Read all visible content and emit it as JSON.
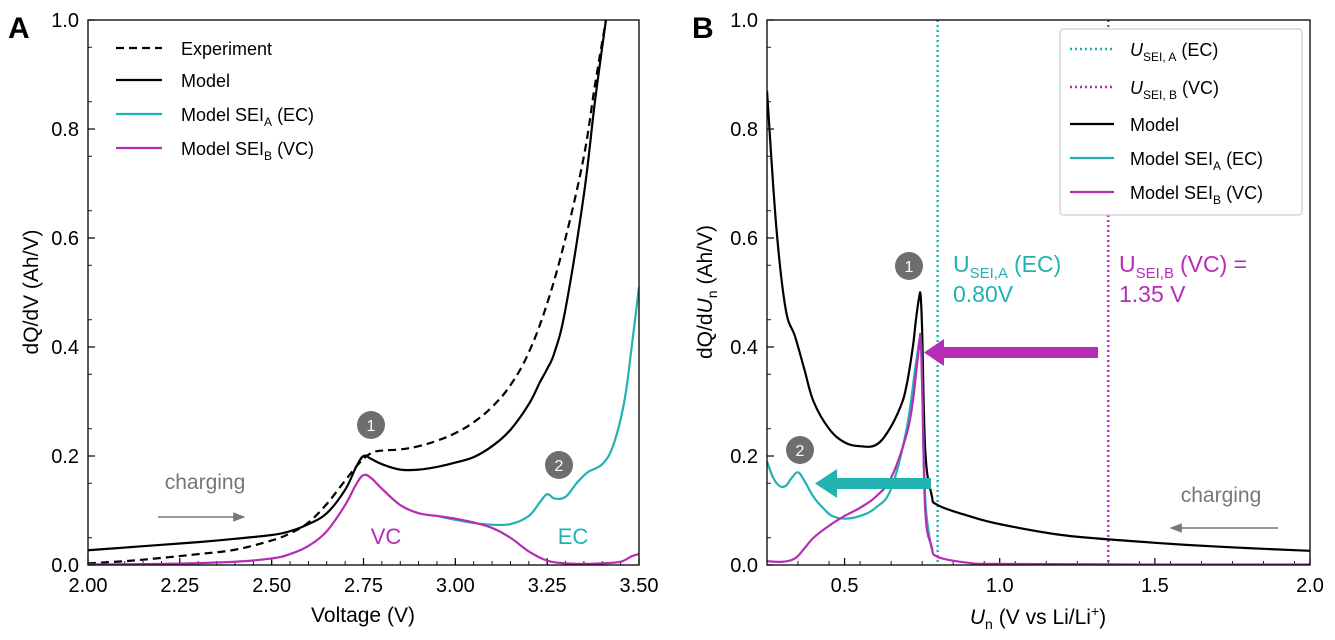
{
  "colors": {
    "experiment": "#000000",
    "model": "#000000",
    "ec": "#22b2b2",
    "vc": "#b52db5",
    "annotation": "#777777",
    "badge": "#6e6e6e"
  },
  "chart_data": [
    {
      "panel": "A",
      "type": "line",
      "xlabel": "Voltage (V)",
      "ylabel": "dQ/dV (Ah/V)",
      "xlim": [
        2.0,
        3.5
      ],
      "ylim": [
        0.0,
        1.0
      ],
      "xticks": [
        "2.00",
        "2.25",
        "2.50",
        "2.75",
        "3.00",
        "3.25",
        "3.50"
      ],
      "yticks": [
        "0.0",
        "0.2",
        "0.4",
        "0.6",
        "0.8",
        "1.0"
      ],
      "legend": {
        "position": "top-left",
        "entries": [
          {
            "key": "experiment",
            "label": "Experiment"
          },
          {
            "key": "model",
            "label": "Model"
          },
          {
            "key": "ec",
            "label": "Model SEI",
            "sub": "A",
            "suffix": "(EC)"
          },
          {
            "key": "vc",
            "label": "Model SEI",
            "sub": "B",
            "suffix": "(VC)"
          }
        ]
      },
      "series": [
        {
          "key": "experiment",
          "name": "Experiment",
          "style": "dashed",
          "x": [
            2.0,
            2.1,
            2.2,
            2.3,
            2.4,
            2.5,
            2.55,
            2.6,
            2.65,
            2.7,
            2.74,
            2.77,
            2.8,
            2.85,
            2.9,
            2.95,
            3.0,
            3.05,
            3.1,
            3.15,
            3.2,
            3.25,
            3.3,
            3.35,
            3.38,
            3.41
          ],
          "y": [
            0.003,
            0.007,
            0.013,
            0.02,
            0.028,
            0.045,
            0.058,
            0.078,
            0.112,
            0.155,
            0.188,
            0.205,
            0.21,
            0.212,
            0.218,
            0.228,
            0.242,
            0.262,
            0.29,
            0.33,
            0.39,
            0.48,
            0.6,
            0.75,
            0.88,
            1.0
          ]
        },
        {
          "key": "model",
          "name": "Model",
          "style": "solid",
          "x": [
            2.0,
            2.1,
            2.2,
            2.3,
            2.4,
            2.5,
            2.55,
            2.6,
            2.65,
            2.7,
            2.73,
            2.75,
            2.77,
            2.8,
            2.85,
            2.9,
            2.95,
            3.0,
            3.05,
            3.1,
            3.15,
            3.2,
            3.23,
            3.25,
            3.27,
            3.3,
            3.35,
            3.38,
            3.41
          ],
          "y": [
            0.027,
            0.032,
            0.037,
            0.042,
            0.048,
            0.055,
            0.062,
            0.075,
            0.095,
            0.138,
            0.18,
            0.2,
            0.195,
            0.185,
            0.175,
            0.175,
            0.18,
            0.188,
            0.198,
            0.218,
            0.248,
            0.295,
            0.335,
            0.36,
            0.39,
            0.47,
            0.68,
            0.85,
            1.0
          ]
        },
        {
          "key": "ec",
          "name": "Model SEI_A (EC)",
          "style": "solid",
          "x": [
            2.95,
            3.0,
            3.05,
            3.1,
            3.15,
            3.2,
            3.23,
            3.25,
            3.27,
            3.3,
            3.33,
            3.36,
            3.4,
            3.43,
            3.46,
            3.48,
            3.5
          ],
          "y": [
            0.09,
            0.083,
            0.077,
            0.074,
            0.075,
            0.09,
            0.115,
            0.13,
            0.122,
            0.125,
            0.15,
            0.17,
            0.185,
            0.22,
            0.3,
            0.4,
            0.51
          ]
        },
        {
          "key": "vc",
          "name": "Model SEI_B (VC)",
          "style": "solid",
          "x": [
            2.0,
            2.2,
            2.4,
            2.5,
            2.55,
            2.6,
            2.65,
            2.7,
            2.73,
            2.75,
            2.77,
            2.8,
            2.85,
            2.9,
            2.95,
            3.0,
            3.05,
            3.1,
            3.15,
            3.2,
            3.25,
            3.3,
            3.35,
            3.4,
            3.45,
            3.48,
            3.5
          ],
          "y": [
            0.001,
            0.002,
            0.006,
            0.012,
            0.02,
            0.035,
            0.062,
            0.11,
            0.148,
            0.165,
            0.16,
            0.14,
            0.11,
            0.095,
            0.09,
            0.085,
            0.078,
            0.068,
            0.05,
            0.025,
            0.008,
            0.003,
            0.002,
            0.003,
            0.006,
            0.016,
            0.02
          ]
        }
      ],
      "annotations": {
        "charging": "charging",
        "vc_label": "VC",
        "ec_label": "EC",
        "badge1": "1",
        "badge2": "2"
      }
    },
    {
      "panel": "B",
      "type": "line",
      "xlabel_italic": "U",
      "xlabel_sub": "n",
      "xlabel_rest": "(V vs Li/Li",
      "xlabel_sup": "+",
      "xlabel_close": ")",
      "ylabel_prefix": "dQ/d",
      "ylabel_italic": "U",
      "ylabel_sub": "n",
      "ylabel_suffix": "(Ah/V)",
      "xlim": [
        0.25,
        2.0
      ],
      "ylim": [
        0.0,
        1.0
      ],
      "xticks": [
        "0.5",
        "1.0",
        "1.5",
        "2.0"
      ],
      "yticks": [
        "0.0",
        "0.2",
        "0.4",
        "0.6",
        "0.8",
        "1.0"
      ],
      "legend": {
        "position": "top-right",
        "entries": [
          {
            "key": "usei_a",
            "label": "U",
            "sub": "SEI, A",
            "suffix": "(EC)",
            "style": "dotted"
          },
          {
            "key": "usei_b",
            "label": "U",
            "sub": "SEI, B",
            "suffix": "(VC)",
            "style": "dotted"
          },
          {
            "key": "model",
            "label": "Model"
          },
          {
            "key": "ec",
            "label": "Model SEI",
            "sub": "A",
            "suffix": "(EC)"
          },
          {
            "key": "vc",
            "label": "Model SEI",
            "sub": "B",
            "suffix": "(VC)"
          }
        ]
      },
      "vlines": [
        {
          "key": "ec",
          "x": 0.8
        },
        {
          "key": "vc",
          "x": 1.35
        }
      ],
      "series": [
        {
          "key": "model",
          "name": "Model",
          "style": "solid",
          "x": [
            0.25,
            0.28,
            0.31,
            0.34,
            0.37,
            0.4,
            0.45,
            0.5,
            0.55,
            0.6,
            0.64,
            0.68,
            0.7,
            0.72,
            0.73,
            0.74,
            0.745,
            0.75,
            0.76,
            0.78,
            0.8,
            0.9,
            1.0,
            1.2,
            1.4,
            1.6,
            1.8,
            2.0
          ],
          "y": [
            0.87,
            0.62,
            0.47,
            0.42,
            0.36,
            0.3,
            0.25,
            0.225,
            0.218,
            0.22,
            0.245,
            0.29,
            0.33,
            0.4,
            0.45,
            0.49,
            0.495,
            0.43,
            0.21,
            0.13,
            0.11,
            0.09,
            0.075,
            0.055,
            0.045,
            0.037,
            0.031,
            0.026
          ]
        },
        {
          "key": "ec",
          "name": "Model SEI_A (EC)",
          "style": "solid",
          "x": [
            0.25,
            0.27,
            0.29,
            0.31,
            0.33,
            0.35,
            0.37,
            0.4,
            0.43,
            0.46,
            0.5,
            0.55,
            0.6,
            0.65,
            0.7,
            0.73,
            0.745,
            0.75,
            0.76,
            0.78
          ],
          "y": [
            0.19,
            0.16,
            0.145,
            0.145,
            0.16,
            0.17,
            0.155,
            0.125,
            0.105,
            0.09,
            0.085,
            0.09,
            0.105,
            0.14,
            0.25,
            0.37,
            0.415,
            0.33,
            0.12,
            0.03
          ]
        },
        {
          "key": "vc",
          "name": "Model SEI_B (VC)",
          "style": "solid",
          "x": [
            0.25,
            0.3,
            0.34,
            0.37,
            0.4,
            0.45,
            0.5,
            0.55,
            0.6,
            0.65,
            0.7,
            0.72,
            0.73,
            0.74,
            0.745,
            0.75,
            0.76,
            0.78,
            0.8,
            0.9,
            1.0,
            1.5,
            2.0
          ],
          "y": [
            0.007,
            0.006,
            0.012,
            0.03,
            0.05,
            0.072,
            0.09,
            0.105,
            0.125,
            0.16,
            0.24,
            0.3,
            0.35,
            0.4,
            0.42,
            0.33,
            0.1,
            0.035,
            0.015,
            0.004,
            0.002,
            0.001,
            0.001
          ]
        }
      ],
      "annotations": {
        "charging": "charging",
        "usei_a_label_prefix": "U",
        "usei_a_label_sub": "SEI,A",
        "usei_a_label_suffix": "(EC)",
        "usei_a_value": "0.80V",
        "usei_b_label_prefix": "U",
        "usei_b_label_sub": "SEI,B",
        "usei_b_label_suffix": "(VC) =",
        "usei_b_value": "1.35 V",
        "badge1": "1",
        "badge2": "2"
      }
    }
  ],
  "panel_labels": [
    "A",
    "B"
  ]
}
